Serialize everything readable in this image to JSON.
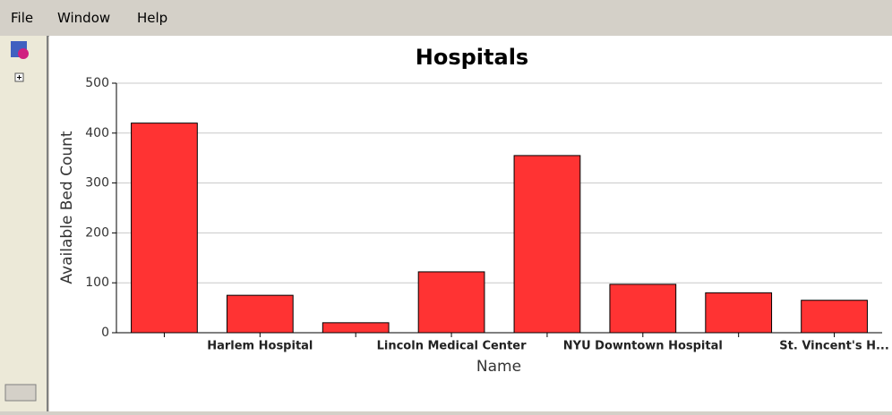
{
  "menu": [
    "File",
    "Window",
    "Help"
  ],
  "chart_data": {
    "type": "bar",
    "title": "Hospitals",
    "x_label": "Name",
    "y_label": "Available Bed Count",
    "categories": [
      null,
      "Harlem Hospital",
      null,
      "Lincoln Medical Center",
      null,
      "NYU Downtown Hospital",
      null,
      "St. Vincent's H..."
    ],
    "values": [
      420,
      75,
      20,
      122,
      355,
      97,
      80,
      65
    ],
    "color": "#ff3333",
    "ylim": [
      0,
      500
    ],
    "yticks": [
      0,
      100,
      200,
      300,
      400,
      500
    ],
    "grid": true
  }
}
